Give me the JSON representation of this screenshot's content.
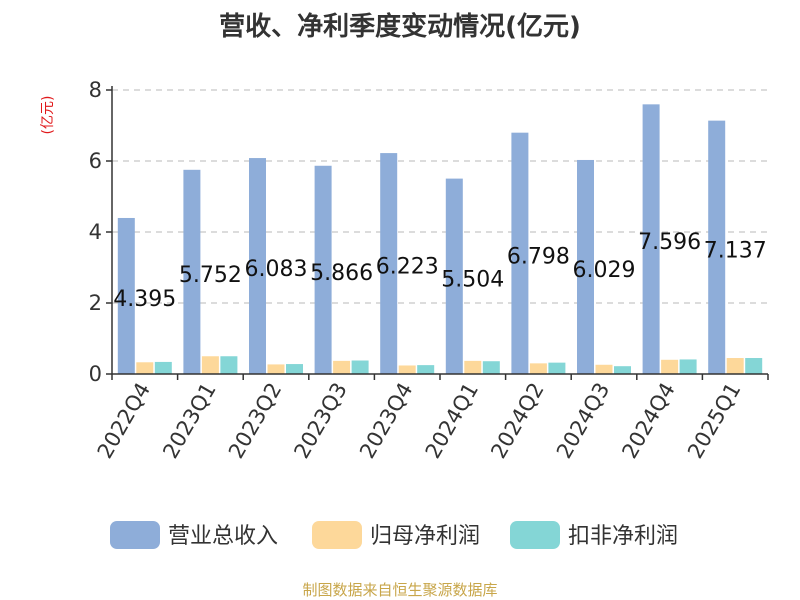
{
  "chart_data": {
    "type": "bar",
    "title": "营收、净利季度变动情况(亿元)",
    "unit_label": "(亿元)",
    "categories": [
      "2022Q4",
      "2023Q1",
      "2023Q2",
      "2023Q3",
      "2023Q4",
      "2024Q1",
      "2024Q2",
      "2024Q3",
      "2024Q4",
      "2025Q1"
    ],
    "series": [
      {
        "name": "营业总收入",
        "color": "#8eadd9",
        "values": [
          4.395,
          5.752,
          6.083,
          5.866,
          6.223,
          5.504,
          6.798,
          6.029,
          7.596,
          7.137
        ],
        "labels": [
          "4.395",
          "5.752",
          "6.083",
          "5.866",
          "6.223",
          "5.504",
          "6.798",
          "6.029",
          "7.596",
          "7.137"
        ]
      },
      {
        "name": "归母净利润",
        "color": "#fdd89a",
        "values": [
          0.33,
          0.5,
          0.27,
          0.37,
          0.24,
          0.37,
          0.3,
          0.26,
          0.4,
          0.45
        ]
      },
      {
        "name": "扣非净利润",
        "color": "#84d6d6",
        "values": [
          0.34,
          0.5,
          0.28,
          0.38,
          0.25,
          0.36,
          0.32,
          0.22,
          0.41,
          0.45
        ]
      }
    ],
    "ylim": [
      0,
      8
    ],
    "yticks": [
      "0",
      "2",
      "4",
      "6",
      "8"
    ],
    "grid": true,
    "legend_position": "bottom",
    "source": "制图数据来自恒生聚源数据库"
  }
}
